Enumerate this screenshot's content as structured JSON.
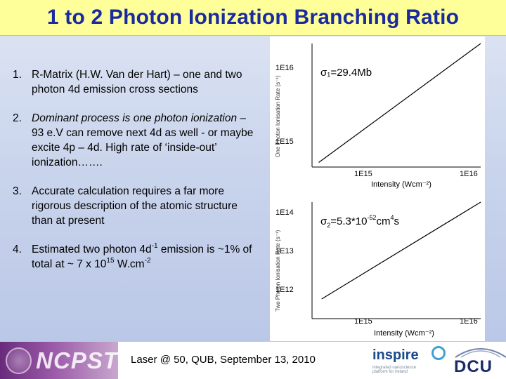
{
  "title": "1 to 2 Photon Ionization Branching Ratio",
  "points": [
    {
      "num": "1.",
      "text": "R-Matrix  (H.W. Van der Hart) – one and two photon 4d emission cross sections"
    },
    {
      "num": "2.",
      "text_italic": "Dominant process is one photon ionization",
      "text_rest": " – 93 e.V can remove next 4d as well  - or maybe excite 4p – 4d. High rate of ‘inside-out’ ionization……."
    },
    {
      "num": "3.",
      "text": "Accurate calculation requires a far more rigorous description of the atomic structure than at present"
    },
    {
      "num": "4.",
      "text_a": "Estimated two photon 4d",
      "sup_a": "-1",
      "text_b": " emission is ~1% of total at ~ 7 x 10",
      "sup_b": "15",
      "text_c": " W.cm",
      "sup_c": "-2"
    }
  ],
  "chart_data": [
    {
      "type": "line",
      "series_label": "σ₁=29.4Mb",
      "xlabel": "Intensity (Wcm⁻²)",
      "ylabel": "One Photon Ionisation Rate (s⁻¹)",
      "x_scale": "log",
      "y_scale": "log",
      "x_ticks": [
        "1E15",
        "1E16"
      ],
      "y_ticks": [
        "1E16",
        "1E15"
      ],
      "xlim": [
        100000000000000.0,
        1e+16
      ],
      "ylim": [
        300000000000000.0,
        2e+16
      ],
      "points": [
        [
          120000000000000.0,
          350000000000000.0
        ],
        [
          1e+16,
          2.9e+16
        ]
      ]
    },
    {
      "type": "line",
      "series_label_base": "σ",
      "series_label_sub": "2",
      "series_label_mid": "=5.3*10",
      "series_label_exp": "-52",
      "series_label_unit": "cm",
      "series_label_unit_exp": "4",
      "series_label_tail": "s",
      "xlabel": "Intensity (Wcm⁻²)",
      "ylabel": "Two Photon Ionisation Rate (s⁻¹)",
      "x_scale": "log",
      "y_scale": "log",
      "x_ticks": [
        "1E15",
        "1E16"
      ],
      "y_ticks": [
        "1E14",
        "1E13",
        "1E12"
      ],
      "xlim": [
        100000000000000.0,
        1e+16
      ],
      "ylim": [
        300000000000.0,
        200000000000000.0
      ],
      "points": [
        [
          130000000000000.0,
          900000000000.0
        ],
        [
          1e+16,
          5300000000000000.0
        ]
      ]
    }
  ],
  "footer": {
    "logo_text": "NCPST",
    "caption": "Laser @ 50, QUB, September 13, 2010",
    "inspire_text": "inspire",
    "inspire_sub": "integrated nanoscience platform for ireland",
    "dcu_text": "DCU"
  }
}
